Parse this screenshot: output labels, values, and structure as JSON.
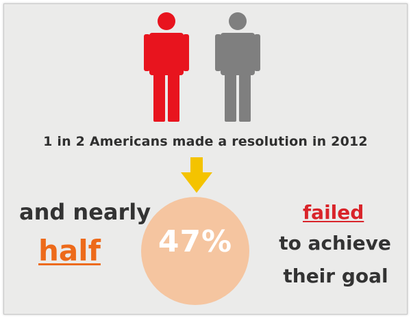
{
  "people_icons": [
    {
      "icon": "person-icon",
      "color": "#e8141e"
    },
    {
      "icon": "person-icon",
      "color": "#7f7f7f"
    }
  ],
  "headline": "1 in 2 Americans made a resolution in 2012",
  "arrow": {
    "icon": "down-arrow-icon",
    "color": "#f4c300"
  },
  "left_text": {
    "line1": "and nearly",
    "line2": "half",
    "line2_color": "#ed6a1a"
  },
  "circle": {
    "value": "47%",
    "color": "#f5c5a0"
  },
  "right_text": {
    "line1": "failed",
    "line1_color": "#d9242a",
    "line2": "to achieve",
    "line3": "their goal"
  }
}
